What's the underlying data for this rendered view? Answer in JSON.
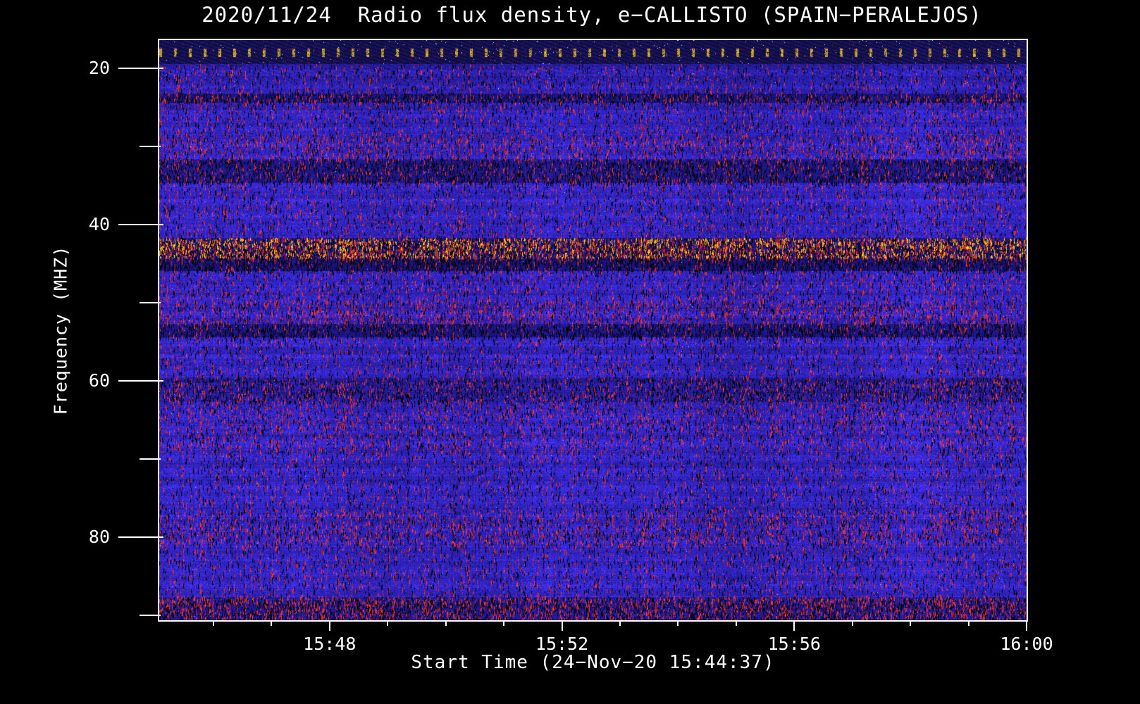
{
  "figure": {
    "background": "#000000",
    "frame_color": "#ffffff",
    "text_color": "#ffffff"
  },
  "chart_data": {
    "type": "heatmap",
    "title": "2020/11/24  Radio flux density, e−CALLISTO (SPAIN−PERALEJOS)",
    "xlabel": "Start Time (24−Nov−20 15:44:37)",
    "ylabel": "Frequency (MHZ)",
    "source": {
      "date": "2020/11/24",
      "instrument": "e-CALLISTO",
      "station": "SPAIN-PERALEJOS",
      "start_time_label": "24-Nov-20 15:44:37"
    },
    "x_axis": {
      "start_time": "15:45:04",
      "end_time": "16:00:00",
      "ticks": [
        "15:48",
        "15:52",
        "15:56",
        "16:00"
      ],
      "minor_tick_interval_s": 60
    },
    "y_axis": {
      "min_mhz": 16.4,
      "max_mhz": 90.6,
      "ticks": [
        20,
        40,
        60,
        80
      ],
      "minor_tick_step_mhz": 10,
      "inverted": true
    },
    "colormap": {
      "background_low": "#000010",
      "quiet": "#2a2ad8",
      "active": "#dd2200",
      "strong": "#ff7700",
      "peak": "#ffcc33"
    },
    "bands": [
      {
        "f0": 16.4,
        "f1": 19.4,
        "kind": "top",
        "note": "dark hatched band with bright yellow dotted calibration line ~17.8 MHz"
      },
      {
        "f0": 19.4,
        "f1": 23.2,
        "blue": 0.85,
        "red": 0.05,
        "dark": 0.06
      },
      {
        "f0": 23.2,
        "f1": 24.4,
        "blue": 0.4,
        "red": 0.1,
        "dark": 0.25
      },
      {
        "f0": 24.4,
        "f1": 28.4,
        "blue": 0.92,
        "red": 0.06,
        "dark": 0.05
      },
      {
        "f0": 28.4,
        "f1": 31.6,
        "blue": 0.95,
        "red": 0.14,
        "dark": 0.06
      },
      {
        "f0": 31.6,
        "f1": 34.6,
        "blue": 0.5,
        "red": 0.08,
        "dark": 0.22
      },
      {
        "f0": 34.6,
        "f1": 41.7,
        "blue": 0.95,
        "red": 0.06,
        "dark": 0.05
      },
      {
        "f0": 41.7,
        "f1": 44.3,
        "kind": "rfi",
        "blue": 0.45,
        "red": 0.52,
        "dark": 0.3,
        "note": "strong broadcast interference band ~43 MHz"
      },
      {
        "f0": 44.3,
        "f1": 45.9,
        "blue": 0.35,
        "red": 0.05,
        "dark": 0.3
      },
      {
        "f0": 45.9,
        "f1": 49.6,
        "blue": 0.95,
        "red": 0.07,
        "dark": 0.05
      },
      {
        "f0": 49.6,
        "f1": 52.6,
        "blue": 0.92,
        "red": 0.15,
        "dark": 0.08
      },
      {
        "f0": 52.6,
        "f1": 54.4,
        "blue": 0.45,
        "red": 0.05,
        "dark": 0.25
      },
      {
        "f0": 54.4,
        "f1": 59.6,
        "blue": 0.95,
        "red": 0.05,
        "dark": 0.05
      },
      {
        "f0": 59.6,
        "f1": 62.6,
        "blue": 0.65,
        "red": 0.09,
        "dark": 0.18
      },
      {
        "f0": 62.6,
        "f1": 69.0,
        "blue": 0.95,
        "red": 0.1,
        "dark": 0.06
      },
      {
        "f0": 69.0,
        "f1": 76.4,
        "blue": 0.95,
        "red": 0.05,
        "dark": 0.05
      },
      {
        "f0": 76.4,
        "f1": 80.9,
        "blue": 0.92,
        "red": 0.13,
        "dark": 0.08
      },
      {
        "f0": 80.9,
        "f1": 87.6,
        "blue": 0.95,
        "red": 0.06,
        "dark": 0.05
      },
      {
        "f0": 87.6,
        "f1": 90.6,
        "blue": 0.55,
        "red": 0.22,
        "dark": 0.25
      }
    ]
  }
}
